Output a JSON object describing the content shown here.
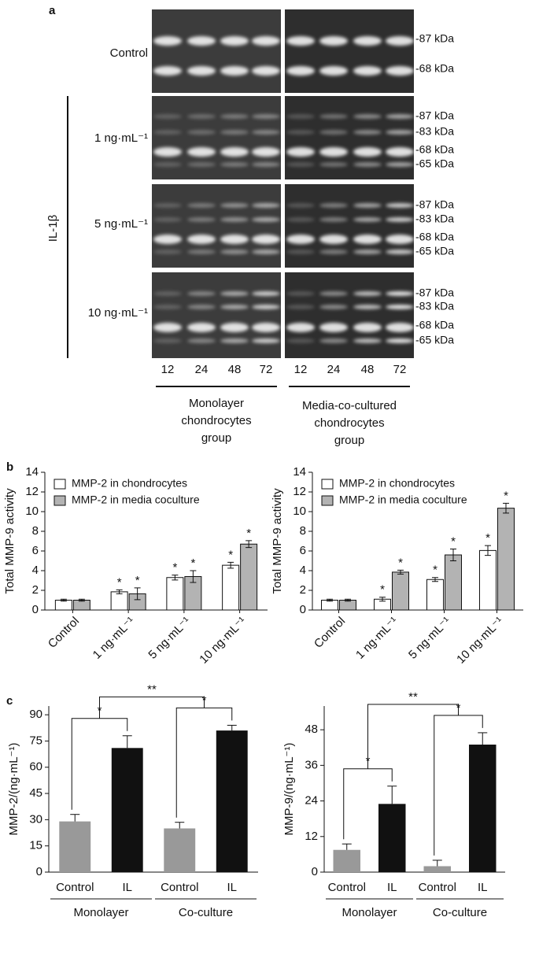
{
  "gel": {
    "panel_label": "a",
    "treatment": "IL-1β",
    "rows": [
      {
        "label": "Control",
        "markers": [
          "-87 kDa",
          "-68 kDa"
        ]
      },
      {
        "label": "1 ng·mL⁻¹",
        "markers": [
          "-87 kDa",
          "-83 kDa",
          "-68 kDa",
          "-65 kDa"
        ]
      },
      {
        "label": "5 ng·mL⁻¹",
        "markers": [
          "-87 kDa",
          "-83 kDa",
          "-68 kDa",
          "-65 kDa"
        ]
      },
      {
        "label": "10 ng·mL⁻¹",
        "markers": [
          "-87 kDa",
          "-83 kDa",
          "-68 kDa",
          "-65 kDa"
        ]
      }
    ],
    "groups": [
      {
        "lanes": [
          "12",
          "24",
          "48",
          "72"
        ],
        "label": [
          "Monolayer",
          "chondrocytes",
          "group"
        ]
      },
      {
        "lanes": [
          "12",
          "24",
          "48",
          "72"
        ],
        "label": [
          "Media-co-cultured",
          "chondrocytes",
          "group"
        ]
      }
    ]
  },
  "chart_data": [
    {
      "type": "grouped-bar",
      "panel_label": "b",
      "ylabel": "Total MMP-9 activity",
      "categories": [
        "Control",
        "1 ng·mL⁻¹",
        "5 ng·mL⁻¹",
        "10 ng·mL⁻¹"
      ],
      "series": [
        {
          "name": "MMP-2 in chondrocytes",
          "color": "#ffffff",
          "values": [
            1.0,
            1.85,
            3.3,
            4.55
          ],
          "errors": [
            0.1,
            0.2,
            0.25,
            0.3
          ],
          "significance": [
            null,
            "*",
            "*",
            "*"
          ]
        },
        {
          "name": "MMP-2 in media coculture",
          "color": "#b3b3b3",
          "values": [
            1.0,
            1.65,
            3.4,
            6.7
          ],
          "errors": [
            0.1,
            0.6,
            0.6,
            0.35
          ],
          "significance": [
            null,
            "*",
            "*",
            "*"
          ]
        }
      ],
      "ylim": [
        0,
        14
      ],
      "yticks": [
        0,
        2,
        4,
        6,
        8,
        10,
        12,
        14
      ]
    },
    {
      "type": "grouped-bar",
      "ylabel": "Total MMP-9 activity",
      "categories": [
        "Control",
        "1 ng·mL⁻¹",
        "5 ng·mL⁻¹",
        "10 ng·mL⁻¹"
      ],
      "series": [
        {
          "name": "MMP-2 in chondrocytes",
          "color": "#ffffff",
          "values": [
            1.0,
            1.1,
            3.1,
            6.05
          ],
          "errors": [
            0.1,
            0.2,
            0.2,
            0.5
          ],
          "significance": [
            null,
            "*",
            "*",
            "*"
          ]
        },
        {
          "name": "MMP-2 in media coculture",
          "color": "#b3b3b3",
          "values": [
            1.0,
            3.85,
            5.6,
            10.35
          ],
          "errors": [
            0.1,
            0.2,
            0.6,
            0.5
          ],
          "significance": [
            null,
            "*",
            "*",
            "*"
          ]
        }
      ],
      "ylim": [
        0,
        14
      ],
      "yticks": [
        0,
        2,
        4,
        6,
        8,
        10,
        12,
        14
      ]
    },
    {
      "type": "bar",
      "panel_label": "c",
      "ylabel": "MMP-2/(ng·mL⁻¹)",
      "categories": [
        "Control",
        "IL",
        "Control",
        "IL"
      ],
      "groups": [
        "Monolayer",
        "Co-culture"
      ],
      "values": [
        29,
        71,
        25,
        81
      ],
      "errors": [
        4,
        7,
        3.5,
        3
      ],
      "colors": [
        "#999999",
        "#111111",
        "#999999",
        "#111111"
      ],
      "comparisons": [
        "*",
        "*",
        "**"
      ],
      "ylim": [
        0,
        95
      ],
      "yticks": [
        0,
        15,
        30,
        45,
        60,
        75,
        90
      ]
    },
    {
      "type": "bar",
      "ylabel": "MMP-9/(ng·mL⁻¹)",
      "categories": [
        "Control",
        "IL",
        "Control",
        "IL"
      ],
      "groups": [
        "Monolayer",
        "Co-culture"
      ],
      "values": [
        7.5,
        23,
        2,
        43
      ],
      "errors": [
        2,
        6,
        2,
        4
      ],
      "colors": [
        "#999999",
        "#111111",
        "#999999",
        "#111111"
      ],
      "comparisons": [
        "*",
        "*",
        "**"
      ],
      "ylim": [
        0,
        56
      ],
      "yticks": [
        0,
        12,
        24,
        36,
        48
      ]
    }
  ]
}
